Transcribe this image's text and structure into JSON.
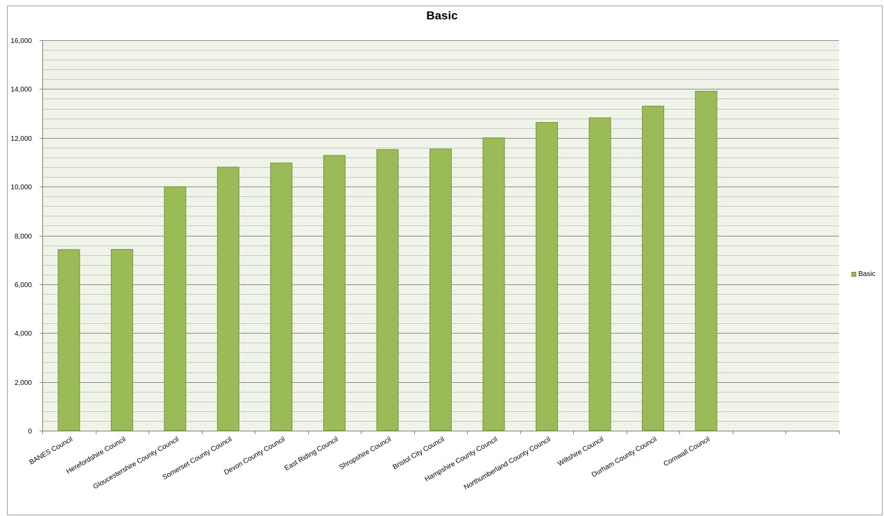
{
  "chart_data": {
    "type": "bar",
    "title": "Basic",
    "xlabel": "",
    "ylabel": "",
    "categories": [
      "BANES Council",
      "Herefordshire Council",
      "Gloucestershire County Council",
      "Somerset County Council",
      "Devon County Council",
      "East Riding Council",
      "Shropshire Council",
      "Bristol City Council",
      "Hampshire County Council",
      "Northumberland County Council",
      "Wiltshire Council",
      "Durham County Council",
      "Cornwall Council",
      "",
      ""
    ],
    "series": [
      {
        "name": "Basic",
        "values": [
          7420,
          7430,
          10000,
          10800,
          10970,
          11280,
          11520,
          11540,
          12000,
          12630,
          12820,
          13300,
          13910,
          null,
          null
        ]
      }
    ],
    "ylim": [
      0,
      16000
    ],
    "yticks": [
      "0",
      "2,000",
      "4,000",
      "6,000",
      "8,000",
      "10,000",
      "12,000",
      "14,000",
      "16,000"
    ],
    "ytick_values": [
      0,
      2000,
      4000,
      6000,
      8000,
      10000,
      12000,
      14000,
      16000
    ],
    "minor_step": 400,
    "grid": true,
    "legend_position": "right",
    "colors": {
      "bar_fill": "#9bbb59",
      "bar_stroke": "#76933c",
      "plot_background": "#f0f3e8",
      "major_grid": "#8c8c8c",
      "minor_grid": "#c8c8c8"
    }
  }
}
